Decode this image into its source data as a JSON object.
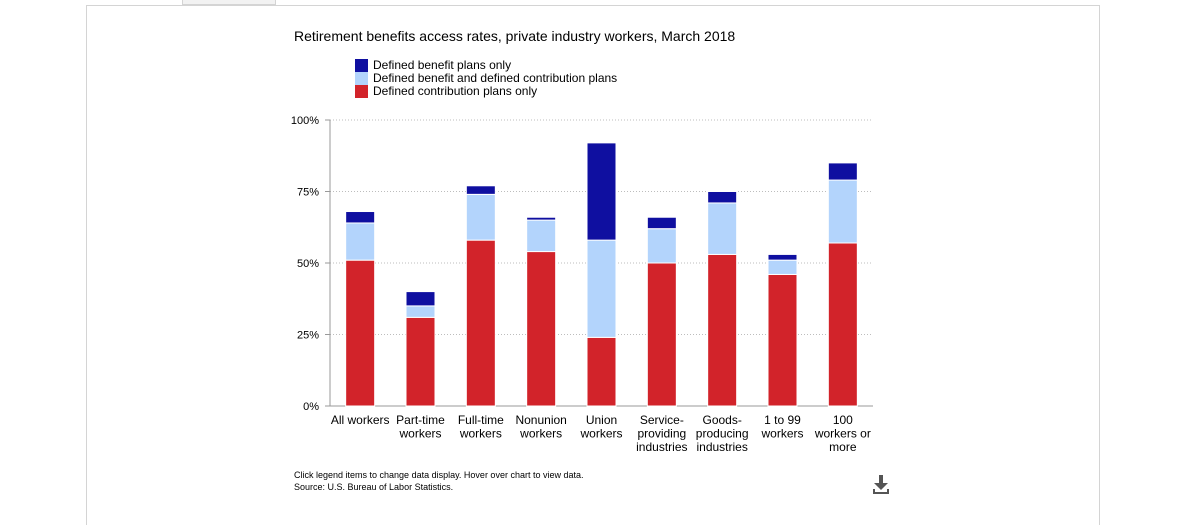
{
  "chart_data": {
    "type": "bar",
    "stacked": true,
    "title": "Retirement benefits access rates, private industry workers, March 2018",
    "categories": [
      [
        "All workers"
      ],
      [
        "Part-time",
        "workers"
      ],
      [
        "Full-time",
        "workers"
      ],
      [
        "Nonunion",
        "workers"
      ],
      [
        "Union",
        "workers"
      ],
      [
        "Service-",
        "providing",
        "industries"
      ],
      [
        "Goods-",
        "producing",
        "industries"
      ],
      [
        "1 to 99",
        "workers"
      ],
      [
        "100",
        "workers or",
        "more"
      ]
    ],
    "series": [
      {
        "name": "Defined contribution plans only",
        "color": "#d2232a",
        "values": [
          51,
          31,
          58,
          54,
          24,
          50,
          53,
          46,
          57
        ]
      },
      {
        "name": "Defined benefit and defined contribution plans",
        "color": "#b3d4fc",
        "values": [
          13,
          4,
          16,
          11,
          34,
          12,
          18,
          5,
          22
        ]
      },
      {
        "name": "Defined benefit plans only",
        "color": "#0f0fa0",
        "values": [
          4,
          5,
          3,
          1,
          34,
          4,
          4,
          2,
          6
        ]
      }
    ],
    "legend_order": [
      2,
      1,
      0
    ],
    "legend_position": "top-left",
    "yticks": [
      "0%",
      "25%",
      "50%",
      "75%",
      "100%"
    ],
    "ytick_values": [
      0,
      25,
      50,
      75,
      100
    ],
    "ylim": [
      0,
      100
    ],
    "grid": true
  },
  "notes": {
    "line1": "Click legend items to change data display. Hover over chart to view data.",
    "line2": "Source: U.S. Bureau of Labor Statistics."
  },
  "icons": {
    "download": "download-icon"
  }
}
